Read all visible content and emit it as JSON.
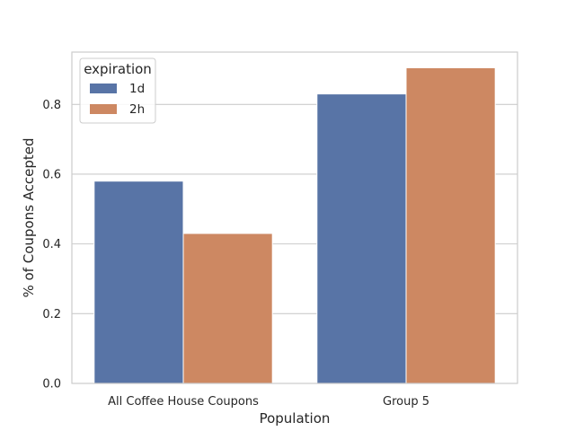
{
  "chart_data": {
    "type": "bar",
    "title": "",
    "xlabel": "Population",
    "ylabel": "% of Coupons Accepted",
    "categories": [
      "All Coffee House Coupons",
      "Group 5"
    ],
    "series": [
      {
        "name": "1d",
        "values": [
          0.58,
          0.83
        ]
      },
      {
        "name": "2h",
        "values": [
          0.43,
          0.905
        ]
      }
    ],
    "legend": {
      "title": "expiration",
      "placement": "top-left"
    },
    "ylim": [
      0,
      0.95
    ],
    "yticks": [
      "0.0",
      "0.2",
      "0.4",
      "0.6",
      "0.8"
    ],
    "ytick_values": [
      0,
      0.2,
      0.4,
      0.6,
      0.8
    ],
    "grid": true,
    "colors": {
      "1d": "#5874a6",
      "2h": "#cd8862",
      "grid": "#cccccc",
      "frame": "#cccccc"
    }
  }
}
